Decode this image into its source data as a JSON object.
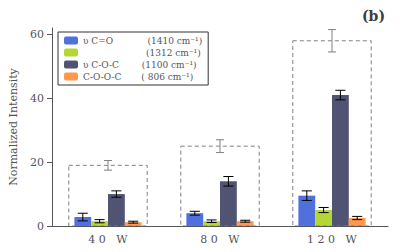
{
  "chart_data": {
    "type": "bar",
    "title": "(b)",
    "categories": [
      "4 0   W",
      "8 0   W",
      "1 2 0   W"
    ],
    "ylabel": "Normalized Intensity",
    "series": [
      {
        "name": "υ C=O            (1410 cm⁻¹)",
        "values": [
          2.8,
          4.0,
          9.5
        ],
        "errors": [
          1.2,
          0.6,
          1.5
        ]
      },
      {
        "name": "                      (1312 cm⁻¹)",
        "values": [
          1.5,
          1.5,
          5.0
        ],
        "errors": [
          0.5,
          0.4,
          0.8
        ]
      },
      {
        "name": "υ C-O-C        (1100 cm⁻¹)",
        "values": [
          10.0,
          14.0,
          41.0
        ],
        "errors": [
          1.0,
          1.5,
          1.5
        ]
      },
      {
        "name": "C-O-O-C       ( 806 cm⁻¹)",
        "values": [
          1.2,
          1.5,
          2.5
        ],
        "errors": [
          0.3,
          0.3,
          0.5
        ]
      }
    ],
    "boxes": {
      "values": [
        19.0,
        25.0,
        58.0
      ],
      "errors": [
        1.5,
        2.0,
        3.5
      ],
      "color": "#808080",
      "line_style": "dashed"
    },
    "ylim": [
      0,
      62
    ],
    "yticks": [
      0,
      20,
      40,
      60
    ],
    "grid": false,
    "legend": "upper left"
  }
}
